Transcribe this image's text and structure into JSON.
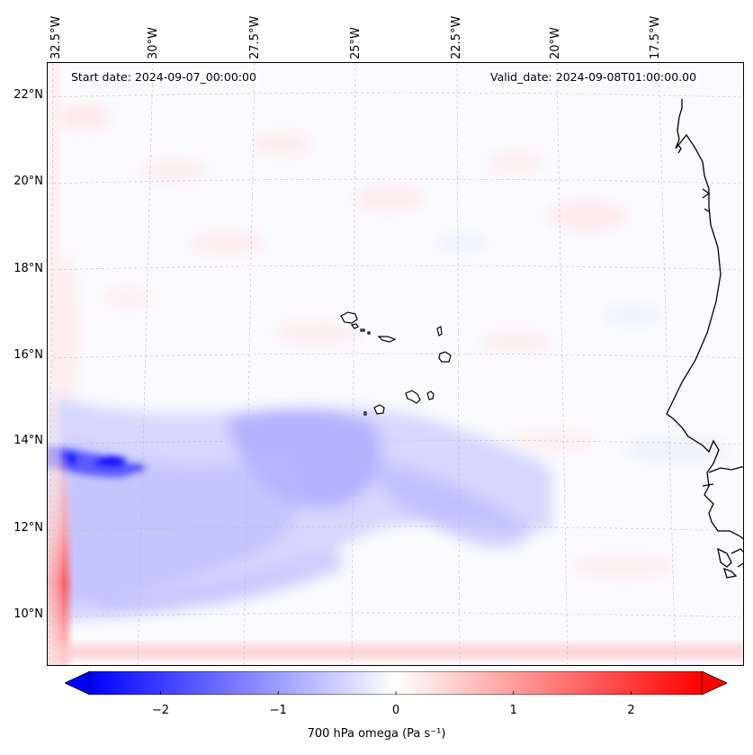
{
  "header": {
    "start_date": "Start date: 2024-09-07_00:00:00",
    "valid_date": "Valid_date: 2024-09-08T01:00:00.00"
  },
  "axes": {
    "lon_labels": [
      "32.5°W",
      "30°W",
      "27.5°W",
      "25°W",
      "22.5°W",
      "20°W",
      "17.5°W"
    ],
    "lat_labels": [
      "22°N",
      "20°N",
      "18°N",
      "16°N",
      "14°N",
      "12°N",
      "10°N"
    ]
  },
  "colorbar": {
    "min": -2.6,
    "max": 2.6,
    "ticks": [
      "−2",
      "−1",
      "0",
      "1",
      "2"
    ],
    "tick_values": [
      -2,
      -1,
      0,
      1,
      2
    ],
    "label": "700 hPa omega (Pa s⁻¹)",
    "colors": {
      "negative": "#0000ff",
      "neutral": "#ffffff",
      "positive": "#ff0000",
      "coast": "#000000"
    }
  },
  "map": {
    "grid": true,
    "features": [
      "cape-verde-islands",
      "west-africa-coastline"
    ]
  }
}
